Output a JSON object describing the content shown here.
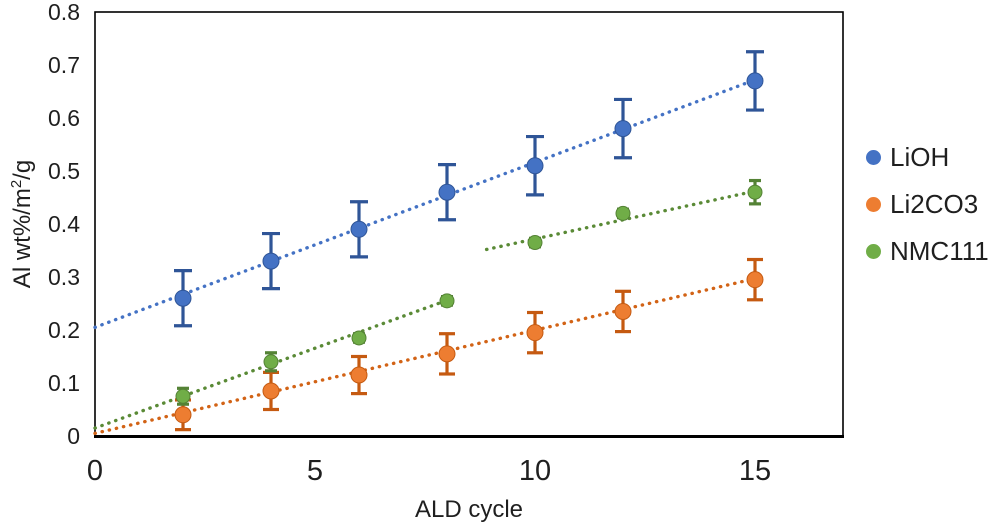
{
  "chart_data": {
    "type": "scatter",
    "title": "",
    "xlabel": "ALD cycle",
    "ylabel": "Al wt%/m2/g",
    "ylabel_parts": {
      "pre": "Al wt%/m",
      "sup": "2",
      "post": "/g"
    },
    "xlim": [
      0,
      17
    ],
    "ylim": [
      0,
      0.8
    ],
    "x_ticks": [
      0,
      5,
      10,
      15
    ],
    "x_tick_labels": [
      "0",
      "5",
      "10",
      "15"
    ],
    "y_ticks": [
      0,
      0.1,
      0.2,
      0.3,
      0.4,
      0.5,
      0.6,
      0.7,
      0.8
    ],
    "y_tick_labels": [
      "0",
      "0.1",
      "0.2",
      "0.3",
      "0.4",
      "0.5",
      "0.6",
      "0.7",
      "0.8"
    ],
    "grid": false,
    "legend_position": "right",
    "x": [
      2,
      4,
      6,
      8,
      10,
      12,
      15
    ],
    "series": [
      {
        "name": "LiOH",
        "color": "#4472c4",
        "edge_color": "#2f5597",
        "trend_color": "#4472c4",
        "marker": "circle",
        "marker_radius": 8,
        "cap_half_width": 9,
        "values": [
          0.26,
          0.33,
          0.39,
          0.46,
          0.51,
          0.58,
          0.67
        ],
        "errors": [
          0.052,
          0.052,
          0.052,
          0.052,
          0.055,
          0.055,
          0.055
        ],
        "trendlines": [
          {
            "from": [
              0,
              0.205
            ],
            "to": [
              15,
              0.672
            ]
          }
        ]
      },
      {
        "name": "Li2CO3",
        "color": "#ed7d31",
        "edge_color": "#c55a11",
        "trend_color": "#d26316",
        "marker": "circle",
        "marker_radius": 8,
        "cap_half_width": 8,
        "values": [
          0.04,
          0.085,
          0.115,
          0.155,
          0.195,
          0.235,
          0.295
        ],
        "errors": [
          0.028,
          0.035,
          0.035,
          0.038,
          0.038,
          0.038,
          0.038
        ],
        "trendlines": [
          {
            "from": [
              0,
              0.005
            ],
            "to": [
              15,
              0.297
            ]
          }
        ]
      },
      {
        "name": "NMC111",
        "color": "#70ad47",
        "edge_color": "#548235",
        "trend_color": "#5a8a36",
        "marker": "circle",
        "marker_radius": 7,
        "cap_half_width": 6,
        "values": [
          0.075,
          0.14,
          0.185,
          0.255,
          0.365,
          0.42,
          0.46
        ],
        "errors": [
          0.015,
          0.017,
          0.008,
          0.008,
          0.008,
          0.008,
          0.022
        ],
        "trendlines": [
          {
            "from": [
              0,
              0.015
            ],
            "to": [
              8,
              0.256
            ]
          },
          {
            "from": [
              8.9,
              0.352
            ],
            "to": [
              15,
              0.462
            ]
          }
        ]
      }
    ]
  },
  "colors": {
    "axis_line": "#000000",
    "text": "#1f1f1f",
    "background": "#ffffff"
  }
}
